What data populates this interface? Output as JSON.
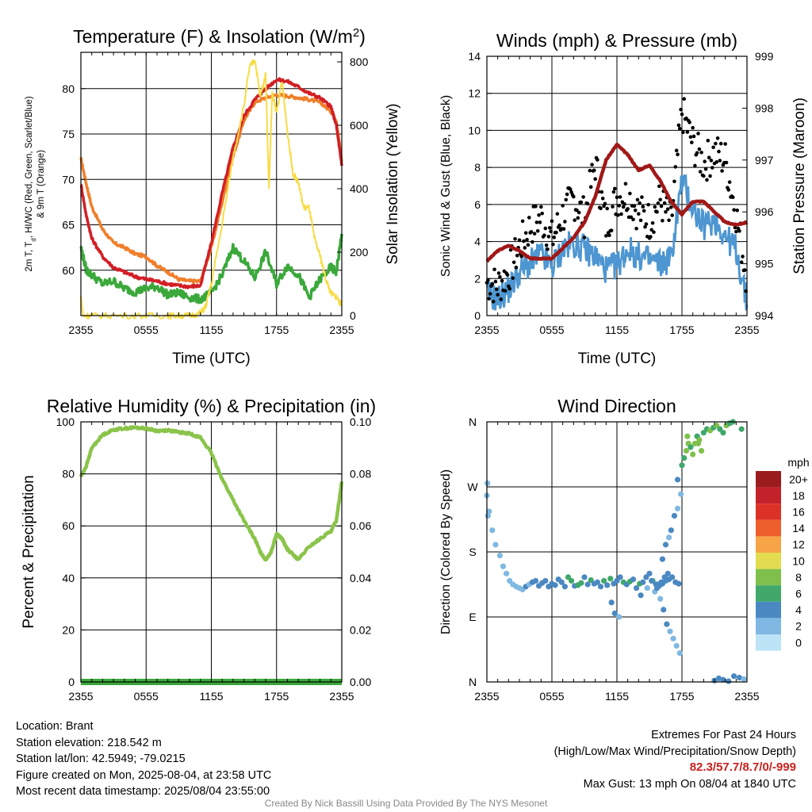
{
  "colors": {
    "temp": "#d21f26",
    "dew": "#3aa83a",
    "hi": "#1e6d1e",
    "t9m": "#f07f2b",
    "solar": "#f7dc46",
    "wind": "#4d96d1",
    "gust": "#000000",
    "pressure": "#a11818",
    "rh": "#8ac44a",
    "precip": "#3aa83a"
  },
  "time_ticks": [
    "2355",
    "0555",
    "1155",
    "1755",
    "2355"
  ],
  "chart_data": [
    {
      "id": "temp",
      "type": "line",
      "title": "Temperature (F) & Insolation (W/m²)",
      "xlabel": "Time (UTC)",
      "ylabel": "2m T, Td, HI/WC (Red, Green, Scarlet/Blue) & 9m T (Orange)",
      "ylabel_lines": [
        "2m T, T",
        "d",
        ", HI/WC (Red, Green, Scarlet/Blue)",
        "& 9m T (Orange)"
      ],
      "y2label": "Solar Insolation (Yellow)",
      "ylim": [
        55,
        84
      ],
      "y2lim": [
        0,
        830
      ],
      "yticks": [
        60,
        65,
        70,
        75,
        80
      ],
      "y2ticks": [
        0,
        200,
        400,
        600,
        800
      ],
      "series": [
        {
          "key": "t9m",
          "x": [
            0,
            0.5,
            1,
            2,
            3,
            4,
            5,
            6,
            7,
            8,
            9,
            10,
            11,
            12,
            13,
            14,
            15,
            16,
            17,
            18,
            19,
            20,
            21,
            22,
            23,
            23.5,
            24
          ],
          "y": [
            72.3,
            69.5,
            67,
            64.5,
            63,
            62.5,
            61.8,
            61.5,
            60.5,
            59.8,
            59,
            58.8,
            58.8,
            62.5,
            67.5,
            72.5,
            76.5,
            78.5,
            79,
            79.3,
            79.2,
            79,
            78.8,
            78.5,
            77.5,
            76.5,
            72
          ]
        },
        {
          "key": "temp",
          "x": [
            0,
            0.5,
            1,
            2,
            3,
            4,
            5,
            6,
            7,
            8,
            9,
            10,
            11,
            12,
            13,
            14,
            15,
            16,
            17,
            18,
            19,
            20,
            21,
            22,
            23,
            23.5,
            24
          ],
          "y": [
            69.5,
            66,
            63.5,
            61.5,
            60.3,
            59.8,
            59.3,
            59,
            58.8,
            58.5,
            58.3,
            58.2,
            58.3,
            63,
            68.5,
            73.5,
            77,
            78.8,
            80,
            81,
            80.8,
            80.2,
            79.5,
            79,
            78,
            76,
            71.5
          ]
        },
        {
          "key": "dew",
          "x": [
            0,
            0.5,
            1,
            2,
            3,
            4,
            5,
            6,
            7,
            8,
            9,
            10,
            11,
            12,
            13,
            14,
            15,
            16,
            17,
            18,
            19,
            20,
            21,
            22,
            23,
            23.5,
            24
          ],
          "y": [
            62.5,
            60,
            59.5,
            58.5,
            58.8,
            58,
            57.6,
            58,
            58.2,
            57.3,
            57.5,
            57,
            56.8,
            57.5,
            59.5,
            62.5,
            61,
            59.2,
            62,
            58.5,
            60.5,
            59.5,
            57,
            59,
            60.3,
            59.8,
            64
          ]
        },
        {
          "key": "solar",
          "axis": "y2",
          "x": [
            0,
            0.2,
            1,
            3,
            6,
            8,
            9,
            10,
            11,
            11.5,
            12,
            13,
            14,
            15,
            15.5,
            16,
            16.5,
            17,
            17.3,
            17.6,
            18,
            18.5,
            19,
            19.5,
            20,
            20.5,
            21,
            21.5,
            22,
            22.5,
            23,
            23.5,
            24
          ],
          "y": [
            60,
            0,
            0,
            0,
            0,
            0,
            0,
            0,
            8,
            30,
            100,
            290,
            500,
            660,
            780,
            810,
            690,
            760,
            400,
            700,
            640,
            740,
            580,
            450,
            420,
            340,
            340,
            240,
            190,
            120,
            70,
            60,
            30
          ]
        }
      ]
    },
    {
      "id": "wind",
      "type": "line",
      "title": "Winds (mph) & Pressure (mb)",
      "xlabel": "Time (UTC)",
      "ylabel": "Sonic Wind & Gust (Blue, Black)",
      "y2label": "Station Pressure (Maroon)",
      "ylim": [
        0,
        14
      ],
      "y2lim": [
        994,
        999
      ],
      "yticks": [
        0,
        2,
        4,
        6,
        8,
        10,
        12,
        14
      ],
      "y2ticks": [
        994,
        995,
        996,
        997,
        998,
        999
      ],
      "series": [
        {
          "key": "wind",
          "x": [
            0,
            1,
            2,
            3,
            4,
            5,
            6,
            7,
            8,
            9,
            10,
            11,
            12,
            13,
            14,
            15,
            16,
            17,
            18,
            19,
            20,
            21,
            22,
            23,
            24
          ],
          "y": [
            1.2,
            0.9,
            1.4,
            2.3,
            2.8,
            3.3,
            2.6,
            3.6,
            3.9,
            3.6,
            3.2,
            2.5,
            2.7,
            3.6,
            3.2,
            3.0,
            2.8,
            3.1,
            7.3,
            5.8,
            4.8,
            5.2,
            4.3,
            3.6,
            0.6
          ]
        },
        {
          "key": "gust",
          "type": "scatter",
          "x": [
            0,
            1,
            2,
            3,
            4,
            5,
            6,
            7,
            8,
            9,
            10,
            11,
            12,
            13,
            14,
            15,
            16,
            17,
            18,
            19,
            20,
            21,
            22,
            23,
            24
          ],
          "y": [
            1.8,
            1.6,
            2.3,
            3.7,
            4.8,
            5.3,
            4.1,
            5.4,
            6.3,
            5.3,
            8.2,
            4.9,
            6.4,
            6.5,
            5.6,
            5.1,
            6.2,
            5.0,
            11.0,
            9.3,
            8.2,
            8.8,
            8.4,
            5.5,
            2.0
          ]
        },
        {
          "key": "pressure",
          "axis": "y2",
          "x": [
            0,
            1,
            2,
            3,
            4,
            5,
            6,
            7,
            8,
            9,
            10,
            11,
            12,
            13,
            14,
            15,
            16,
            17,
            18,
            19,
            20,
            21,
            22,
            23,
            24
          ],
          "y": [
            995.05,
            995.25,
            995.35,
            995.25,
            995.1,
            995.1,
            995.1,
            995.3,
            995.5,
            995.8,
            996.3,
            997.0,
            997.3,
            997.1,
            996.8,
            996.9,
            996.6,
            996.2,
            995.95,
            996.2,
            996.2,
            996.0,
            995.8,
            995.75,
            995.8
          ]
        }
      ]
    },
    {
      "id": "rh",
      "type": "line",
      "title": "Relative Humidity (%) & Precipitation (in)",
      "ylabel": "Percent & Precipitation",
      "ylim": [
        0,
        100
      ],
      "y2lim": [
        0,
        0.1
      ],
      "yticks": [
        0,
        20,
        40,
        60,
        80,
        100
      ],
      "y2ticks": [
        "0.00",
        "0.02",
        "0.04",
        "0.06",
        "0.08",
        "0.10"
      ],
      "series": [
        {
          "key": "rh",
          "x": [
            0,
            0.5,
            1,
            2,
            3,
            4,
            5,
            6,
            7,
            8,
            9,
            10,
            11,
            12,
            13,
            14,
            15,
            16,
            16.5,
            17,
            17.5,
            18,
            18.5,
            19,
            19.5,
            20,
            21,
            22,
            23,
            23.5,
            24
          ],
          "y": [
            79,
            83,
            90,
            95,
            97,
            97.5,
            97.8,
            97.5,
            96.5,
            96.8,
            96,
            95.5,
            94,
            88,
            78,
            70,
            62,
            55,
            50,
            47,
            50,
            57,
            55,
            51,
            49,
            47,
            52,
            55,
            58,
            62,
            77
          ]
        },
        {
          "key": "precip",
          "axis": "y2",
          "x": [
            0,
            24
          ],
          "y": [
            0,
            0
          ]
        }
      ]
    },
    {
      "id": "wdir",
      "type": "scatter",
      "title": "Wind Direction",
      "ylabel": "Direction (Colored By Speed)",
      "yticks": [
        "N",
        "E",
        "S",
        "W",
        "N"
      ],
      "ylim": [
        0,
        360
      ],
      "legend": {
        "title": "mph",
        "labels": [
          "20+",
          "18",
          "16",
          "14",
          "12",
          "10",
          "8",
          "6",
          "4",
          "2",
          "0"
        ],
        "colors": [
          "#9b1c1c",
          "#c4222a",
          "#dc3226",
          "#ef5f2b",
          "#f7a447",
          "#e3dc50",
          "#7fc04d",
          "#3fa86a",
          "#4a88c2",
          "#7fb8e2",
          "#bde3f7"
        ]
      },
      "points_dir": [
        258,
        236,
        210,
        190,
        175,
        160,
        150,
        140,
        135,
        132,
        130,
        128,
        132,
        135,
        138,
        140,
        133,
        137,
        140,
        132,
        136,
        134,
        142,
        138,
        132,
        145,
        140,
        133,
        134,
        137,
        145,
        135,
        141,
        136,
        138,
        132,
        140,
        134,
        143,
        136,
        140,
        145,
        138,
        135,
        139,
        142,
        130,
        136,
        138,
        145,
        150,
        140,
        135,
        133,
        136,
        140,
        142,
        145,
        138,
        136,
        110,
        95,
        90,
        120,
        130,
        140,
        135,
        138,
        145,
        150,
        125,
        115,
        100,
        80,
        70,
        60,
        50,
        40,
        130,
        170,
        190,
        200,
        210,
        230,
        240,
        260,
        280,
        300,
        310,
        320,
        330,
        325,
        315,
        330,
        340,
        335,
        320,
        345,
        350,
        348,
        352,
        355,
        350,
        345,
        355,
        358,
        360,
        340,
        330,
        350,
        2,
        5,
        3,
        1,
        8,
        6,
        4,
        230,
        275
      ],
      "points_hour": [
        0,
        0.2,
        0.5,
        0.8,
        1.2,
        1.5,
        1.8,
        2.1,
        2.4,
        2.7,
        3.0,
        3.3,
        3.6,
        3.9,
        4.2,
        4.5,
        4.8,
        5.1,
        5.4,
        5.7,
        6.0,
        6.3,
        6.6,
        6.9,
        7.2,
        7.5,
        7.8,
        8.1,
        8.4,
        8.7,
        9.0,
        9.3,
        9.6,
        9.9,
        10.2,
        10.5,
        10.8,
        11.1,
        11.4,
        11.7,
        12.0,
        12.3,
        12.6,
        12.9,
        13.2,
        13.5,
        13.8,
        14.1,
        14.4,
        14.7,
        15.0,
        15.3,
        15.6,
        15.9,
        16.2,
        16.5,
        16.8,
        17.1,
        17.4,
        17.7,
        11.5,
        11.8,
        12.2,
        14.2,
        14.8,
        15.2,
        15.8,
        16.1,
        16.4,
        16.7,
        15.5,
        16.0,
        16.3,
        16.6,
        16.9,
        17.2,
        17.5,
        17.8,
        15.7,
        16.2,
        16.5,
        16.8,
        17.0,
        17.3,
        17.6,
        17.9,
        17.6,
        18.0,
        18.2,
        18.4,
        18.6,
        18.8,
        19.0,
        19.2,
        19.4,
        19.6,
        19.8,
        20.0,
        20.3,
        20.6,
        20.9,
        21.2,
        21.5,
        21.8,
        22.1,
        22.4,
        22.7,
        18.5,
        19.5,
        23.5,
        21.0,
        21.4,
        21.8,
        22.3,
        22.8,
        23.3,
        23.7,
        0.1,
        0.05
      ],
      "points_speed": [
        1,
        1,
        1,
        1,
        1,
        1,
        1,
        1,
        2,
        2,
        2,
        2,
        3,
        2,
        3,
        3,
        3,
        3,
        3,
        4,
        3,
        4,
        3,
        4,
        4,
        5,
        5,
        4,
        6,
        5,
        4,
        4,
        5,
        4,
        3,
        4,
        5,
        4,
        5,
        4,
        4,
        4,
        5,
        4,
        5,
        3,
        4,
        5,
        4,
        3,
        4,
        5,
        4,
        3,
        3,
        4,
        3,
        3,
        3,
        3,
        3,
        3,
        2,
        3,
        2,
        3,
        4,
        3,
        3,
        3,
        2,
        2,
        3,
        3,
        2,
        2,
        2,
        2,
        4,
        3,
        3,
        2,
        3,
        3,
        2,
        2,
        3,
        5,
        6,
        7,
        7,
        6,
        8,
        7,
        6,
        7,
        7,
        6,
        6,
        7,
        6,
        7,
        6,
        6,
        7,
        5,
        5,
        8,
        7,
        5,
        4,
        4,
        4,
        3,
        4,
        3,
        2,
        2,
        2
      ]
    }
  ],
  "info_left": [
    "Location: Brant",
    "Station elevation: 218.542 m",
    "Station lat/lon: 42.5949; -79.0215",
    "Figure created on Mon, 2025-08-04, at 23:58 UTC",
    "Most recent data timestamp: 2025/08/04 23:55:00"
  ],
  "extremes": {
    "title": "Extremes For Past 24 Hours",
    "subtitle": "(High/Low/Max Wind/Precipitation/Snow Depth)",
    "values": "82.3/57.7/8.7/0/-999",
    "max_gust": "Max Gust: 13 mph On 08/04 at 1840 UTC"
  },
  "credit": "Created By Nick Bassill Using Data Provided By The NYS Mesonet"
}
